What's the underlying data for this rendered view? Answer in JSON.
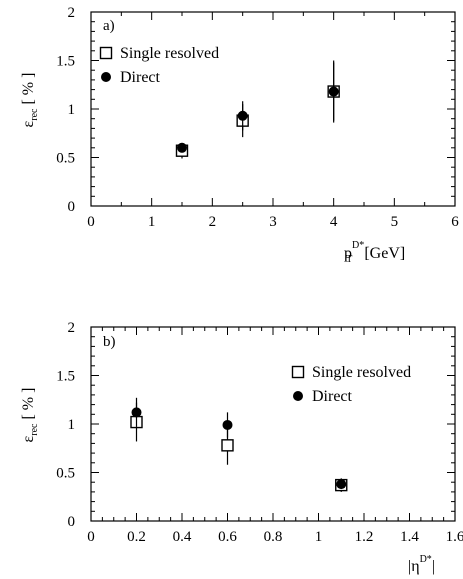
{
  "chart_data": [
    {
      "type": "scatter",
      "panel_label": "a)",
      "xlabel": {
        "main": "p",
        "sub": "T",
        "sup": "D*",
        "unit": "[GeV]"
      },
      "ylabel": {
        "main": "ε",
        "sub": "rec",
        "unit": "[ % ]"
      },
      "xlim": [
        0,
        6
      ],
      "ylim": [
        0,
        2
      ],
      "x_ticks": [
        "0",
        "1",
        "2",
        "3",
        "4",
        "5",
        "6"
      ],
      "y_ticks": [
        "0",
        "0.5",
        "1",
        "1.5",
        "2"
      ],
      "legend_position": "top-left",
      "series": [
        {
          "name": "Single resolved",
          "marker": "open-square",
          "points": [
            {
              "x": 1.5,
              "y": 0.57,
              "err": 0.08
            },
            {
              "x": 2.5,
              "y": 0.88,
              "err": 0.17
            },
            {
              "x": 4.0,
              "y": 1.18,
              "err": 0.32
            }
          ]
        },
        {
          "name": "Direct",
          "marker": "filled-circle",
          "points": [
            {
              "x": 1.5,
              "y": 0.6,
              "err": 0.05
            },
            {
              "x": 2.5,
              "y": 0.93,
              "err": 0.15
            },
            {
              "x": 4.0,
              "y": 1.18,
              "err": 0.3
            }
          ]
        }
      ]
    },
    {
      "type": "scatter",
      "panel_label": "b)",
      "xlabel": {
        "main": "|η",
        "sup": "D*",
        "end": "|"
      },
      "ylabel": {
        "main": "ε",
        "sub": "rec",
        "unit": "[ % ]"
      },
      "xlim": [
        0,
        1.6
      ],
      "ylim": [
        0,
        2
      ],
      "x_ticks": [
        "0",
        "0.2",
        "0.4",
        "0.6",
        "0.8",
        "1",
        "1.2",
        "1.4",
        "1.6"
      ],
      "y_ticks": [
        "0",
        "0.5",
        "1",
        "1.5",
        "2"
      ],
      "legend_position": "top-right",
      "series": [
        {
          "name": "Single resolved",
          "marker": "open-square",
          "points": [
            {
              "x": 0.2,
              "y": 1.02,
              "err": 0.2
            },
            {
              "x": 0.6,
              "y": 0.78,
              "err": 0.2
            },
            {
              "x": 1.1,
              "y": 0.37,
              "err": 0.07
            }
          ]
        },
        {
          "name": "Direct",
          "marker": "filled-circle",
          "points": [
            {
              "x": 0.2,
              "y": 1.12,
              "err": 0.15
            },
            {
              "x": 0.6,
              "y": 0.99,
              "err": 0.13
            },
            {
              "x": 1.1,
              "y": 0.38,
              "err": 0.05
            }
          ]
        }
      ]
    }
  ]
}
